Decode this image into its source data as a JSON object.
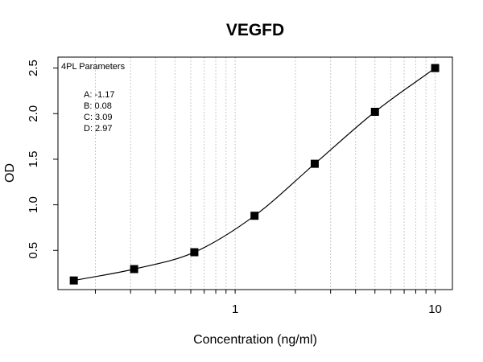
{
  "chart_data": {
    "type": "scatter",
    "title": "VEGFD",
    "xlabel": "Concentration (ng/ml)",
    "ylabel": "OD",
    "x_scale": "log",
    "xlim": [
      0.13,
      12.2
    ],
    "ylim": [
      0.07,
      2.62
    ],
    "x_tick_labels": [
      "1",
      "10"
    ],
    "y_tick_labels": [
      "0.5",
      "1.0",
      "1.5",
      "2.0",
      "2.5"
    ],
    "grid": "vertical dotted gray lines at log minor ticks",
    "points": {
      "x": [
        0.156,
        0.3125,
        0.625,
        1.25,
        2.5,
        5,
        10
      ],
      "y": [
        0.17,
        0.295,
        0.48,
        0.88,
        1.45,
        2.02,
        2.5
      ]
    },
    "fit_curve": "4PL",
    "annotation": {
      "heading": "4PL Parameters",
      "lines": [
        "A: -1.17",
        "B: 0.08",
        "C: 3.09",
        "D: 2.97"
      ]
    }
  }
}
